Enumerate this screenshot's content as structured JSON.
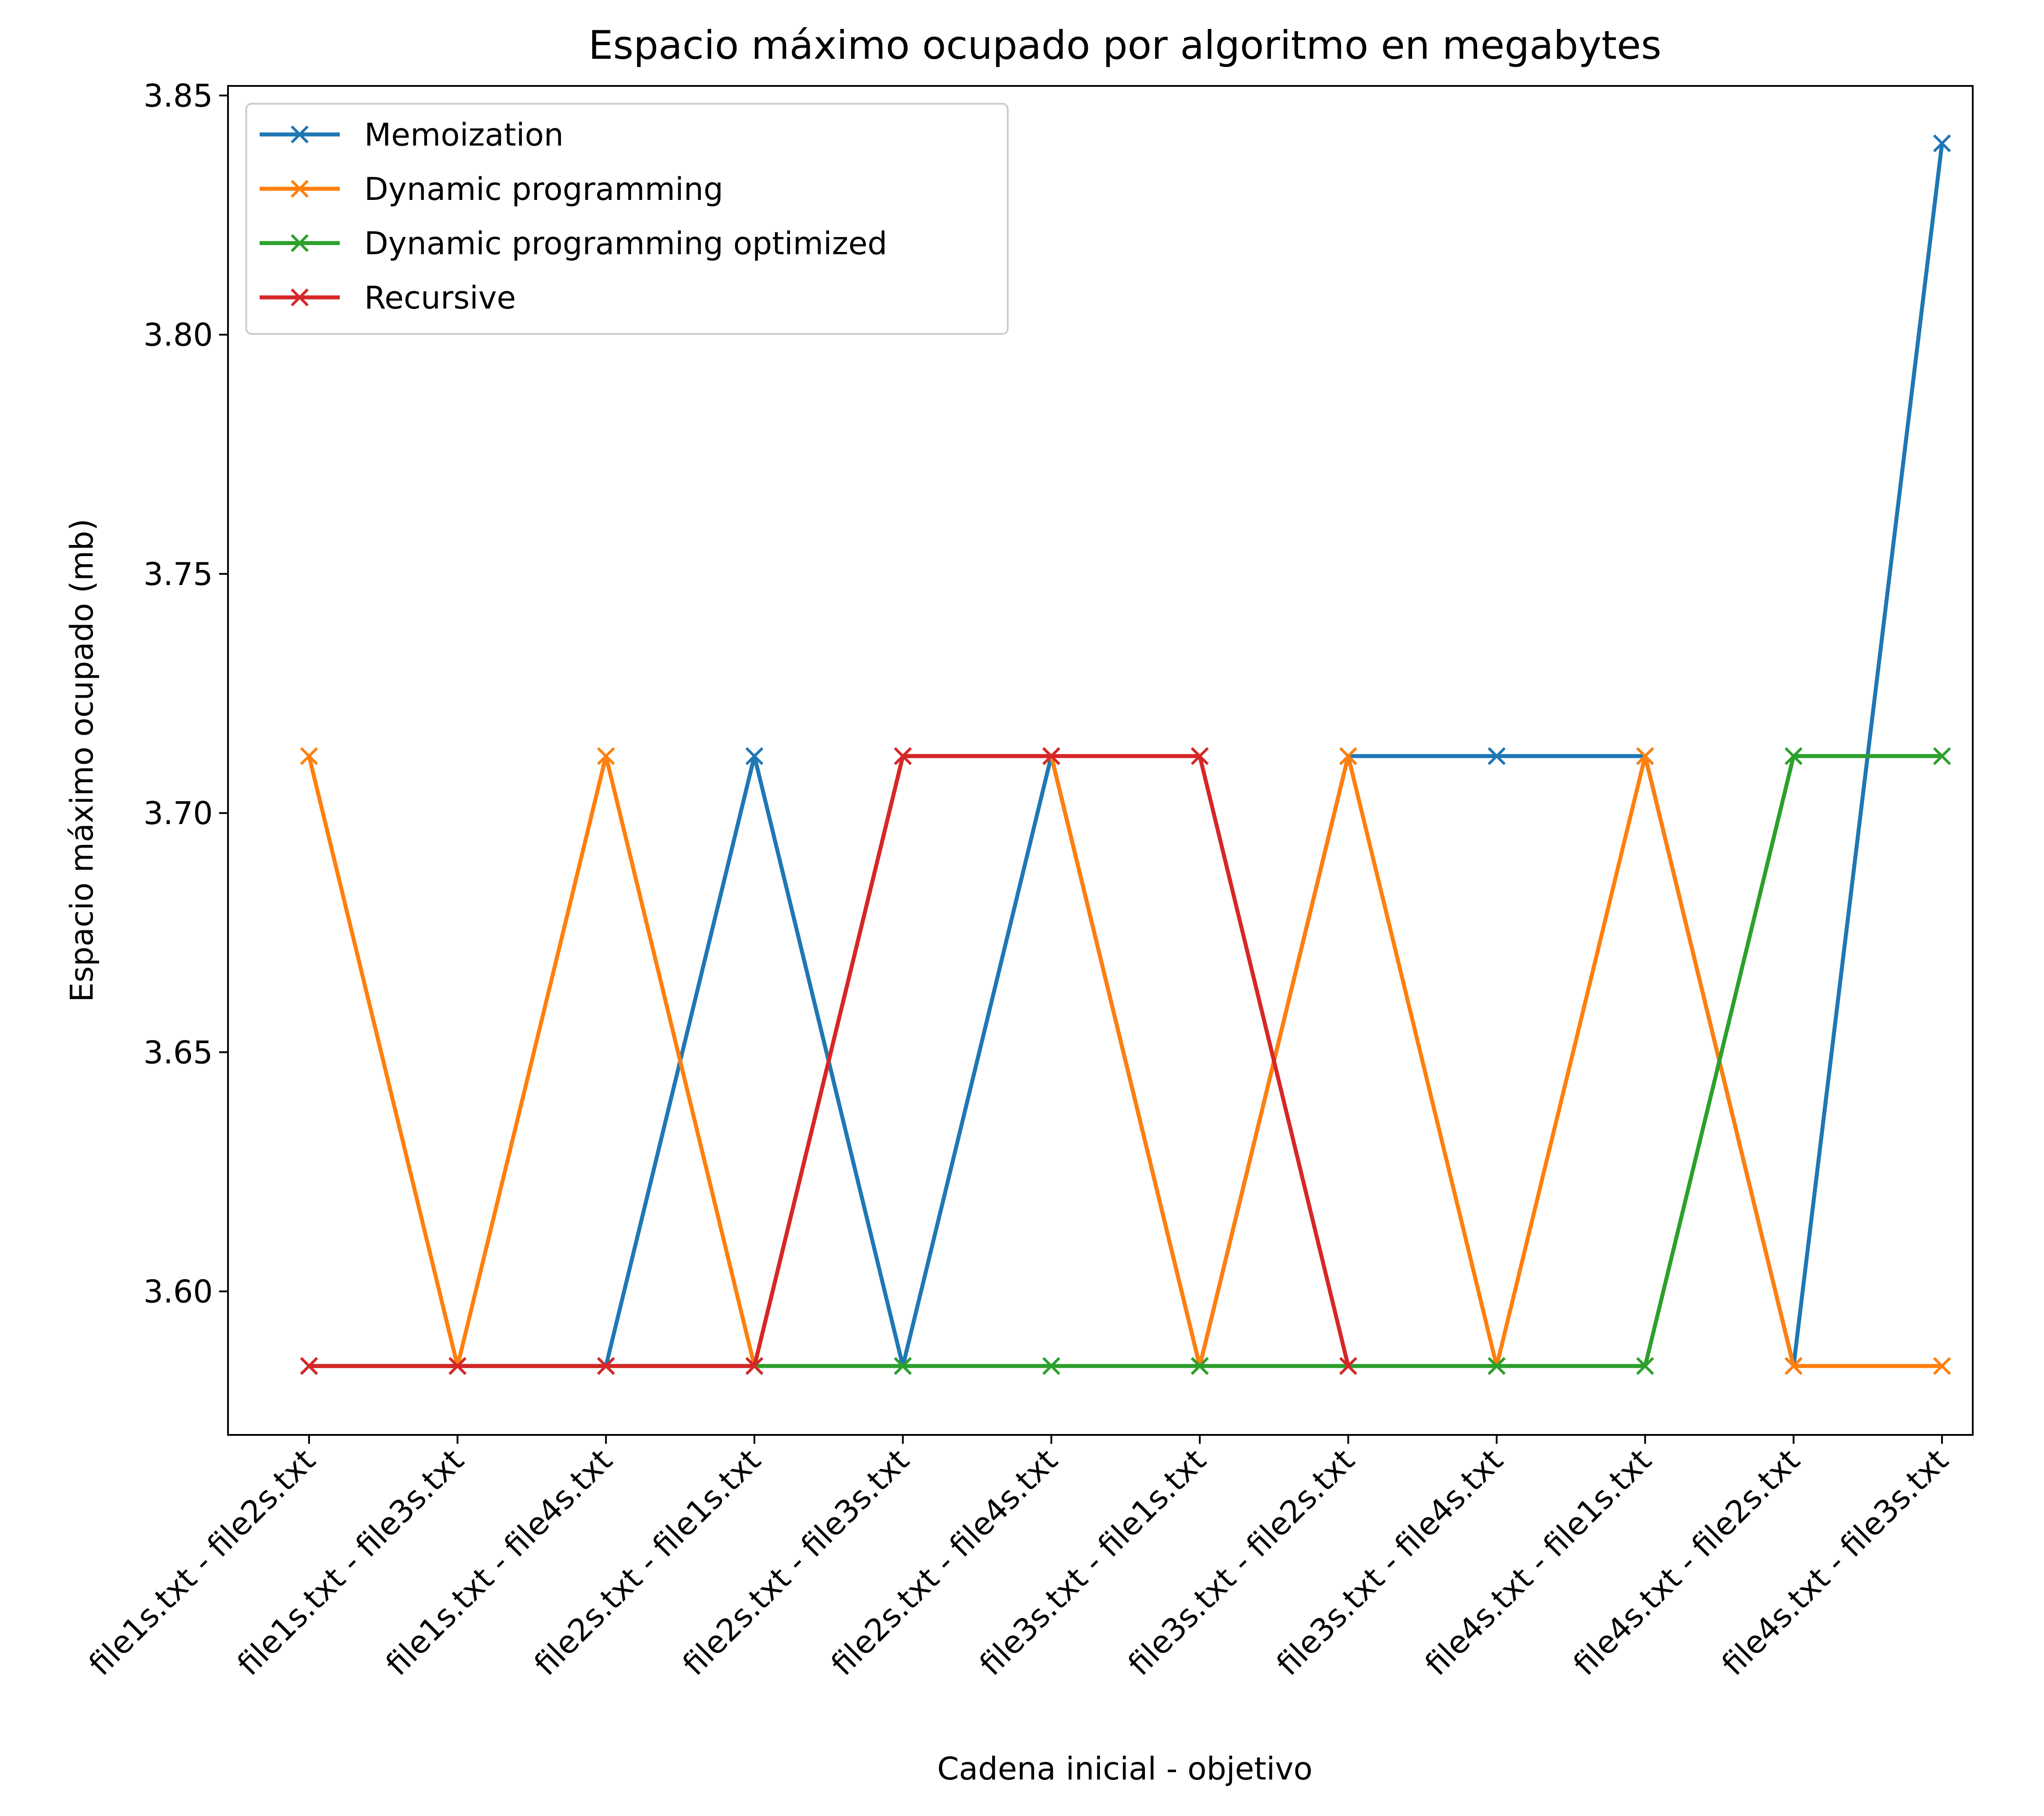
{
  "chart_data": {
    "type": "line",
    "title": "Espacio máximo ocupado por algoritmo en megabytes",
    "xlabel": "Cadena inicial - objetivo",
    "ylabel": "Espacio máximo ocupado (mb)",
    "ylim": [
      3.57,
      3.852
    ],
    "yticks": [
      "3.60",
      "3.65",
      "3.70",
      "3.75",
      "3.80",
      "3.85"
    ],
    "grid": false,
    "legend_position": "top-left",
    "marker": "x",
    "categories": [
      "file1s.txt - file2s.txt",
      "file1s.txt - file3s.txt",
      "file1s.txt - file4s.txt",
      "file2s.txt - file1s.txt",
      "file2s.txt - file3s.txt",
      "file2s.txt - file4s.txt",
      "file3s.txt - file1s.txt",
      "file3s.txt - file2s.txt",
      "file3s.txt - file4s.txt",
      "file4s.txt - file1s.txt",
      "file4s.txt - file2s.txt",
      "file4s.txt - file3s.txt"
    ],
    "series": [
      {
        "name": "Memoization",
        "color": "#1f77b4",
        "values": [
          3.5844,
          3.5844,
          3.5844,
          3.7119,
          3.5844,
          3.7119,
          3.5844,
          3.7119,
          3.7119,
          3.7119,
          3.5844,
          3.84
        ]
      },
      {
        "name": "Dynamic programming",
        "color": "#ff7f0e",
        "values": [
          3.7119,
          3.5844,
          3.7119,
          3.5844,
          3.7119,
          3.7119,
          3.5844,
          3.7119,
          3.5844,
          3.7119,
          3.5844,
          3.5844
        ]
      },
      {
        "name": "Dynamic programming optimized",
        "color": "#2ca02c",
        "values": [
          3.5844,
          3.5844,
          3.5844,
          3.5844,
          3.5844,
          3.5844,
          3.5844,
          3.5844,
          3.5844,
          3.5844,
          3.7119,
          3.7119
        ]
      },
      {
        "name": "Recursive",
        "color": "#d62728",
        "values": [
          3.5844,
          3.5844,
          3.5844,
          3.5844,
          3.7119,
          3.7119,
          3.7119,
          3.5844,
          null,
          null,
          null,
          null
        ]
      }
    ]
  }
}
